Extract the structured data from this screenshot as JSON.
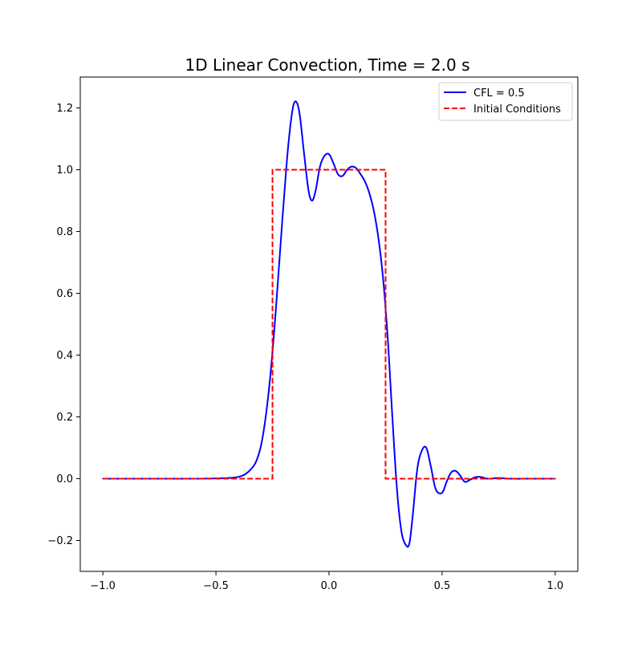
{
  "chart_data": {
    "type": "line",
    "title": "1D Linear Convection, Time = 2.0 s",
    "xlabel": "",
    "ylabel": "",
    "xlim": [
      -1.1,
      1.1
    ],
    "ylim": [
      -0.3,
      1.3
    ],
    "x_ticks": [
      -1.0,
      -0.5,
      0.0,
      0.5,
      1.0
    ],
    "x_tick_labels": [
      "−1.0",
      "−0.5",
      "0.0",
      "0.5",
      "1.0"
    ],
    "y_ticks": [
      -0.2,
      0.0,
      0.2,
      0.4,
      0.6,
      0.8,
      1.0,
      1.2
    ],
    "y_tick_labels": [
      "−0.2",
      "0.0",
      "0.2",
      "0.4",
      "0.6",
      "0.8",
      "1.0",
      "1.2"
    ],
    "grid": false,
    "legend_position": "top-right",
    "series": [
      {
        "name": "CFL = 0.5",
        "color": "#0000ff",
        "style": "solid-with-small-markers",
        "x": [
          -1.0,
          -0.8,
          -0.6,
          -0.45,
          -0.4,
          -0.37,
          -0.34,
          -0.32,
          -0.3,
          -0.28,
          -0.26,
          -0.24,
          -0.22,
          -0.2,
          -0.18,
          -0.16,
          -0.145,
          -0.13,
          -0.11,
          -0.09,
          -0.075,
          -0.06,
          -0.04,
          -0.02,
          0.0,
          0.02,
          0.04,
          0.06,
          0.08,
          0.1,
          0.12,
          0.14,
          0.16,
          0.18,
          0.2,
          0.22,
          0.24,
          0.26,
          0.28,
          0.3,
          0.32,
          0.34,
          0.355,
          0.37,
          0.39,
          0.41,
          0.43,
          0.45,
          0.47,
          0.49,
          0.505,
          0.52,
          0.54,
          0.56,
          0.58,
          0.6,
          0.62,
          0.64,
          0.66,
          0.68,
          0.7,
          0.75,
          0.8,
          0.9,
          1.0
        ],
        "y": [
          0.0,
          0.0,
          0.0,
          0.002,
          0.006,
          0.015,
          0.035,
          0.06,
          0.11,
          0.2,
          0.33,
          0.5,
          0.7,
          0.9,
          1.08,
          1.2,
          1.22,
          1.18,
          1.05,
          0.93,
          0.9,
          0.93,
          1.01,
          1.045,
          1.05,
          1.02,
          0.985,
          0.98,
          1.0,
          1.01,
          1.005,
          0.985,
          0.96,
          0.92,
          0.86,
          0.77,
          0.64,
          0.45,
          0.2,
          -0.03,
          -0.17,
          -0.215,
          -0.21,
          -0.12,
          0.03,
          0.09,
          0.1,
          0.04,
          -0.03,
          -0.048,
          -0.04,
          -0.01,
          0.02,
          0.025,
          0.01,
          -0.01,
          -0.005,
          0.003,
          0.006,
          0.004,
          0.0,
          0.002,
          0.0,
          0.0,
          0.0
        ]
      },
      {
        "name": "Initial Conditions",
        "color": "#ff0000",
        "style": "dashed",
        "x": [
          -1.0,
          -0.25,
          -0.25,
          0.25,
          0.25,
          1.0
        ],
        "y": [
          0.0,
          0.0,
          1.0,
          1.0,
          0.0,
          0.0
        ]
      }
    ]
  }
}
